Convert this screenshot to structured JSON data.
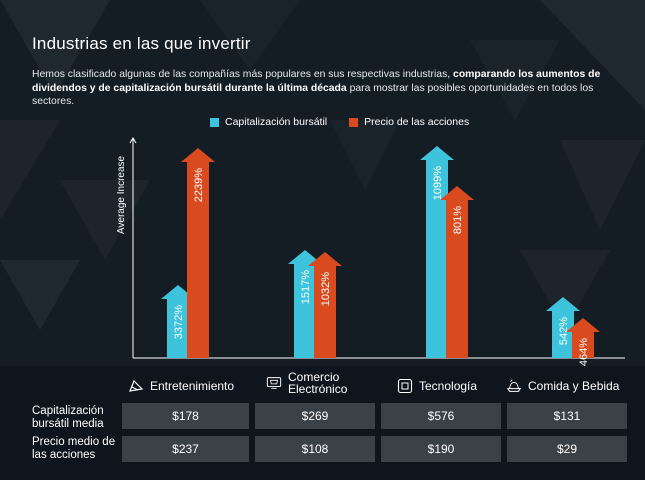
{
  "header": {
    "title": "Industrias en las que invertir",
    "desc_part1": "Hemos clasificado algunas de las compañías más populares en sus respectivas industrias, ",
    "desc_bold": "comparando los aumentos de dividendos y de capitalización bursátil durante la última década",
    "desc_part2": " para mostrar las posibles oportunidades en todos los sectores."
  },
  "colors": {
    "cap": "#3ec3dc",
    "price": "#d94a1f",
    "background": "#141c24"
  },
  "chart_data": {
    "type": "bar",
    "ylabel": "Average Increase",
    "categories": [
      "Entretenimiento",
      "Comercio Electrónico",
      "Tecnología",
      "Comida y Bebida"
    ],
    "series": [
      {
        "name": "Capitalización bursátil",
        "values": [
          3372,
          1517,
          1099,
          542
        ],
        "labels": [
          "3372%",
          "1517%",
          "1099%",
          "542%"
        ]
      },
      {
        "name": "Precio de las acciones",
        "values": [
          2239,
          1032,
          801,
          464
        ],
        "labels": [
          "2239%",
          "1032%",
          "801%",
          "464%"
        ]
      }
    ]
  },
  "categories": [
    {
      "label": "Entretenimiento",
      "icon": "ticket-icon"
    },
    {
      "label": "Comercio Electrónico",
      "icon": "cart-icon"
    },
    {
      "label": "Tecnología",
      "icon": "chip-icon"
    },
    {
      "label": "Comida y Bebida",
      "icon": "food-icon"
    }
  ],
  "table": {
    "row1_label": "Capitalización bursátil media",
    "row2_label": "Precio medio de las acciones",
    "row1": [
      "$178",
      "$269",
      "$576",
      "$131"
    ],
    "row2": [
      "$237",
      "$108",
      "$190",
      "$29"
    ]
  }
}
